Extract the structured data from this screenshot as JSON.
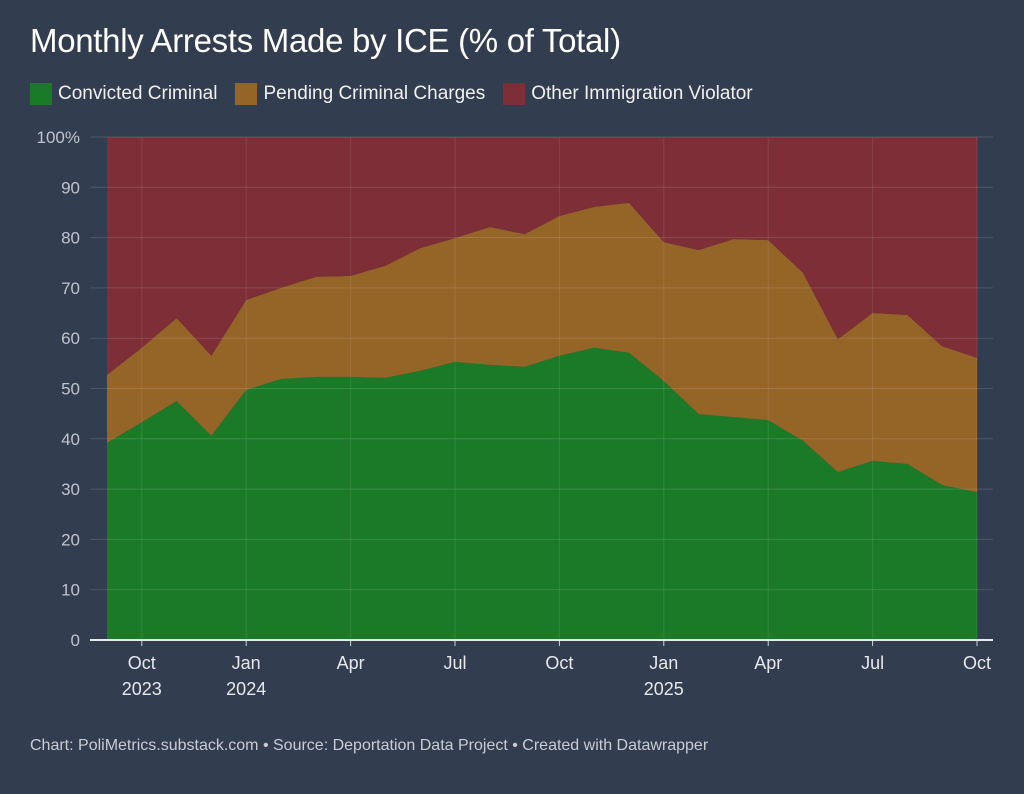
{
  "title": "Monthly Arrests Made by ICE (% of Total)",
  "footer": "Chart: PoliMetrics.substack.com • Source: Deportation Data Project • Created with Datawrapper",
  "chart_data": {
    "type": "area",
    "stacked": true,
    "title": "Monthly Arrests Made by ICE (% of Total)",
    "x": [
      "2023-09",
      "2023-10",
      "2023-11",
      "2023-12",
      "2024-01",
      "2024-02",
      "2024-03",
      "2024-04",
      "2024-05",
      "2024-06",
      "2024-07",
      "2024-08",
      "2024-09",
      "2024-10",
      "2024-11",
      "2024-12",
      "2025-01",
      "2025-02",
      "2025-03",
      "2025-04",
      "2025-05",
      "2025-06",
      "2025-07",
      "2025-08",
      "2025-09",
      "2025-10"
    ],
    "series": [
      {
        "name": "Convicted Criminal",
        "color": "#1a7a28",
        "values": [
          39.2,
          43.3,
          47.5,
          40.6,
          49.7,
          51.9,
          52.3,
          52.3,
          52.1,
          53.5,
          55.3,
          54.7,
          54.3,
          56.5,
          58.1,
          57.1,
          51.5,
          44.9,
          44.3,
          43.7,
          39.6,
          33.4,
          35.6,
          35.0,
          30.8,
          29.4
        ]
      },
      {
        "name": "Pending Criminal Charges",
        "color": "#956427",
        "values": [
          13.5,
          14.8,
          16.5,
          15.9,
          17.9,
          18.1,
          19.9,
          20.1,
          22.3,
          24.4,
          24.6,
          27.4,
          26.4,
          27.8,
          28.0,
          29.8,
          27.6,
          32.6,
          35.4,
          35.8,
          33.4,
          26.4,
          29.4,
          29.6,
          27.6,
          26.7
        ]
      },
      {
        "name": "Other Immigration Violator",
        "color": "#7d2e36",
        "values": [
          47.3,
          41.9,
          36.0,
          43.5,
          32.4,
          30.0,
          27.8,
          27.6,
          25.6,
          22.1,
          20.1,
          17.9,
          19.3,
          15.7,
          13.9,
          13.1,
          20.9,
          22.5,
          20.3,
          20.5,
          27.0,
          40.2,
          35.0,
          35.4,
          41.6,
          43.9
        ]
      }
    ],
    "ylim": [
      0,
      100
    ],
    "yticks": [
      "0",
      "10",
      "20",
      "30",
      "40",
      "50",
      "60",
      "70",
      "80",
      "90",
      "100%"
    ],
    "xticks": [
      {
        "x": "2023-10",
        "label": "Oct",
        "year": "2023"
      },
      {
        "x": "2024-01",
        "label": "Jan",
        "year": "2024"
      },
      {
        "x": "2024-04",
        "label": "Apr",
        "year": ""
      },
      {
        "x": "2024-07",
        "label": "Jul",
        "year": ""
      },
      {
        "x": "2024-10",
        "label": "Oct",
        "year": ""
      },
      {
        "x": "2025-01",
        "label": "Jan",
        "year": "2025"
      },
      {
        "x": "2025-04",
        "label": "Apr",
        "year": ""
      },
      {
        "x": "2025-07",
        "label": "Jul",
        "year": ""
      },
      {
        "x": "2025-10",
        "label": "Oct",
        "year": ""
      }
    ],
    "grid": true,
    "legend_position": "top-left"
  }
}
